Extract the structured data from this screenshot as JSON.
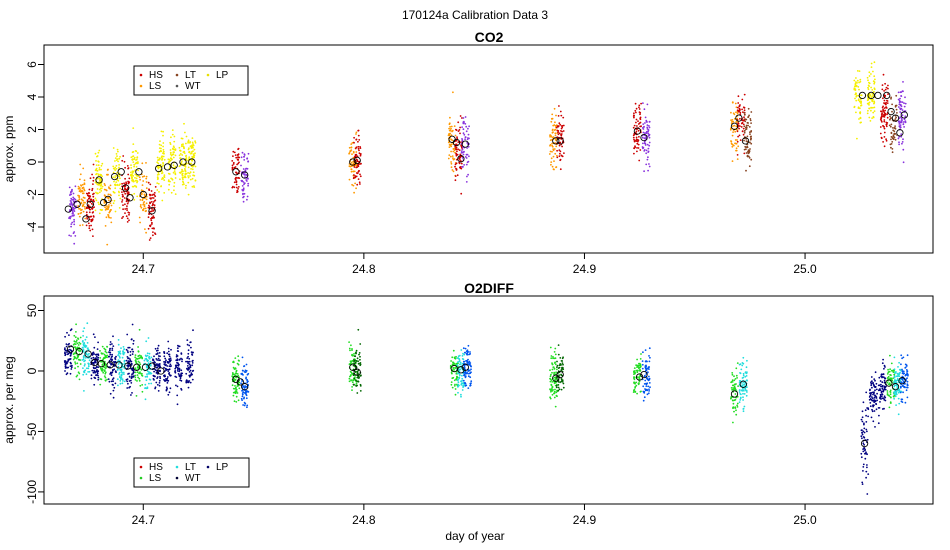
{
  "page_title": "170124a   Calibration Data 3",
  "xlabel": "day of year",
  "x_ticks": [
    "24.7",
    "24.8",
    "24.9",
    "25.0"
  ],
  "x_tick_values": [
    24.7,
    24.8,
    24.9,
    25.0
  ],
  "xlim": [
    24.655,
    25.058
  ],
  "chart_data": [
    {
      "type": "scatter",
      "title": "CO2",
      "ylabel": "approx. ppm",
      "ylim": [
        -5.6,
        7.2
      ],
      "y_ticks": [
        "-4",
        "-2",
        "0",
        "2",
        "4",
        "6"
      ],
      "y_tick_values": [
        -4,
        -2,
        0,
        2,
        4,
        6
      ],
      "legend": {
        "placement": "top-left",
        "entries": [
          {
            "name": "HS",
            "color": "#cc0000"
          },
          {
            "name": "LT",
            "color": "#884422"
          },
          {
            "name": "LP",
            "color": "#e8e000"
          },
          {
            "name": "LS",
            "color": "#ff9900"
          },
          {
            "name": "WT",
            "color": "#555555"
          }
        ]
      },
      "series": [
        {
          "name": "HS",
          "color": "#cc0000"
        },
        {
          "name": "LS",
          "color": "#ff9900"
        },
        {
          "name": "LT",
          "color": "#884422"
        },
        {
          "name": "WT",
          "color": "#8833dd"
        },
        {
          "name": "LP",
          "color": "#f5f000"
        }
      ],
      "clusters": [
        {
          "x": 24.668,
          "mean": -2.8,
          "color": "#8833dd"
        },
        {
          "x": 24.672,
          "mean": -2.4,
          "color": "#ff9900"
        },
        {
          "x": 24.676,
          "mean": -2.6,
          "color": "#cc0000"
        },
        {
          "x": 24.68,
          "mean": -1.2,
          "color": "#f5f000"
        },
        {
          "x": 24.684,
          "mean": -2.2,
          "color": "#ff9900"
        },
        {
          "x": 24.688,
          "mean": -1.0,
          "color": "#f5f000"
        },
        {
          "x": 24.692,
          "mean": -1.9,
          "color": "#cc0000"
        },
        {
          "x": 24.696,
          "mean": -0.7,
          "color": "#f5f000"
        },
        {
          "x": 24.7,
          "mean": -2.1,
          "color": "#ff9900"
        },
        {
          "x": 24.704,
          "mean": -2.9,
          "color": "#cc0000"
        },
        {
          "x": 24.708,
          "mean": -0.4,
          "color": "#f5f000"
        },
        {
          "x": 24.713,
          "mean": -0.2,
          "color": "#f5f000"
        },
        {
          "x": 24.718,
          "mean": 0.0,
          "color": "#f5f000"
        },
        {
          "x": 24.722,
          "mean": 0.1,
          "color": "#f5f000"
        },
        {
          "x": 24.742,
          "mean": -0.7,
          "color": "#cc0000"
        },
        {
          "x": 24.746,
          "mean": -0.9,
          "color": "#8833dd"
        },
        {
          "x": 24.795,
          "mean": 0.0,
          "color": "#ff9900"
        },
        {
          "x": 24.797,
          "mean": 0.0,
          "color": "#cc0000"
        },
        {
          "x": 24.84,
          "mean": 1.3,
          "color": "#ff9900"
        },
        {
          "x": 24.843,
          "mean": 0.6,
          "color": "#cc0000"
        },
        {
          "x": 24.846,
          "mean": 1.0,
          "color": "#8833dd"
        },
        {
          "x": 24.886,
          "mean": 1.4,
          "color": "#ff9900"
        },
        {
          "x": 24.889,
          "mean": 1.4,
          "color": "#cc0000"
        },
        {
          "x": 24.924,
          "mean": 1.9,
          "color": "#cc0000"
        },
        {
          "x": 24.928,
          "mean": 1.5,
          "color": "#8833dd"
        },
        {
          "x": 24.968,
          "mean": 2.3,
          "color": "#ff9900"
        },
        {
          "x": 24.971,
          "mean": 2.5,
          "color": "#cc0000"
        },
        {
          "x": 24.974,
          "mean": 1.4,
          "color": "#884422"
        },
        {
          "x": 25.024,
          "mean": 4.0,
          "color": "#f5f000"
        },
        {
          "x": 25.03,
          "mean": 4.0,
          "color": "#f5f000"
        },
        {
          "x": 25.036,
          "mean": 3.0,
          "color": "#cc0000"
        },
        {
          "x": 25.04,
          "mean": 2.2,
          "color": "#884422"
        },
        {
          "x": 25.044,
          "mean": 2.8,
          "color": "#8833dd"
        }
      ],
      "markers": [
        [
          24.666,
          -2.9
        ],
        [
          24.67,
          -2.6
        ],
        [
          24.674,
          -3.5
        ],
        [
          24.676,
          -2.6
        ],
        [
          24.68,
          -1.1
        ],
        [
          24.682,
          -2.5
        ],
        [
          24.684,
          -2.3
        ],
        [
          24.687,
          -0.9
        ],
        [
          24.69,
          -0.6
        ],
        [
          24.692,
          -1.6
        ],
        [
          24.694,
          -2.2
        ],
        [
          24.698,
          -0.6
        ],
        [
          24.7,
          -2.0
        ],
        [
          24.704,
          -3.0
        ],
        [
          24.707,
          -0.4
        ],
        [
          24.711,
          -0.3
        ],
        [
          24.714,
          -0.2
        ],
        [
          24.718,
          0.0
        ],
        [
          24.722,
          0.0
        ],
        [
          24.742,
          -0.6
        ],
        [
          24.746,
          -0.8
        ],
        [
          24.795,
          0.0
        ],
        [
          24.797,
          0.1
        ],
        [
          24.84,
          1.4
        ],
        [
          24.842,
          1.2
        ],
        [
          24.844,
          0.2
        ],
        [
          24.846,
          1.1
        ],
        [
          24.887,
          1.3
        ],
        [
          24.889,
          1.3
        ],
        [
          24.924,
          1.9
        ],
        [
          24.927,
          1.5
        ],
        [
          24.968,
          2.2
        ],
        [
          24.97,
          2.7
        ],
        [
          24.973,
          1.3
        ],
        [
          25.026,
          4.1
        ],
        [
          25.03,
          4.1
        ],
        [
          25.033,
          4.1
        ],
        [
          25.037,
          4.1
        ],
        [
          25.039,
          3.1
        ],
        [
          25.041,
          2.7
        ],
        [
          25.043,
          1.8
        ],
        [
          25.045,
          2.9
        ]
      ]
    },
    {
      "type": "scatter",
      "title": "O2DIFF",
      "ylabel": "approx. per meg",
      "ylim": [
        -110,
        62
      ],
      "y_ticks": [
        "-100",
        "-50",
        "0",
        "50"
      ],
      "y_tick_values": [
        -100,
        -50,
        0,
        50
      ],
      "legend": {
        "placement": "bottom-left",
        "entries": [
          {
            "name": "HS",
            "color": "#cc0000"
          },
          {
            "name": "LT",
            "color": "#22dddd"
          },
          {
            "name": "LP",
            "color": "#000066"
          },
          {
            "name": "LS",
            "color": "#22cc22"
          },
          {
            "name": "WT",
            "color": "#000033"
          }
        ]
      },
      "series": [
        {
          "name": "HS",
          "color": "#0055ee"
        },
        {
          "name": "LS",
          "color": "#22dd22"
        },
        {
          "name": "LT",
          "color": "#22dddd"
        },
        {
          "name": "WT",
          "color": "#006600"
        },
        {
          "name": "LP",
          "color": "#000080"
        }
      ],
      "clusters": [
        {
          "x": 24.666,
          "mean": 12,
          "color": "#000080"
        },
        {
          "x": 24.67,
          "mean": 16,
          "color": "#22dd22"
        },
        {
          "x": 24.674,
          "mean": 14,
          "color": "#22dddd"
        },
        {
          "x": 24.678,
          "mean": 8,
          "color": "#000080"
        },
        {
          "x": 24.682,
          "mean": 6,
          "color": "#22dd22"
        },
        {
          "x": 24.686,
          "mean": 5,
          "color": "#000080"
        },
        {
          "x": 24.69,
          "mean": 5,
          "color": "#22dddd"
        },
        {
          "x": 24.694,
          "mean": 4,
          "color": "#000080"
        },
        {
          "x": 24.698,
          "mean": 2,
          "color": "#22dd22"
        },
        {
          "x": 24.702,
          "mean": 2,
          "color": "#22dddd"
        },
        {
          "x": 24.706,
          "mean": 3,
          "color": "#000080"
        },
        {
          "x": 24.711,
          "mean": 2,
          "color": "#000080"
        },
        {
          "x": 24.716,
          "mean": 3,
          "color": "#000080"
        },
        {
          "x": 24.721,
          "mean": 4,
          "color": "#000080"
        },
        {
          "x": 24.742,
          "mean": -8,
          "color": "#22dd22"
        },
        {
          "x": 24.746,
          "mean": -12,
          "color": "#0055ee"
        },
        {
          "x": 24.795,
          "mean": 2,
          "color": "#22dd22"
        },
        {
          "x": 24.797,
          "mean": 0,
          "color": "#006600"
        },
        {
          "x": 24.841,
          "mean": 2,
          "color": "#22dd22"
        },
        {
          "x": 24.844,
          "mean": 0,
          "color": "#22dddd"
        },
        {
          "x": 24.847,
          "mean": 4,
          "color": "#0055ee"
        },
        {
          "x": 24.886,
          "mean": -5,
          "color": "#22dd22"
        },
        {
          "x": 24.889,
          "mean": -3,
          "color": "#006600"
        },
        {
          "x": 24.924,
          "mean": -4,
          "color": "#22dd22"
        },
        {
          "x": 24.928,
          "mean": -2,
          "color": "#0055ee"
        },
        {
          "x": 24.968,
          "mean": -18,
          "color": "#22dd22"
        },
        {
          "x": 24.972,
          "mean": -12,
          "color": "#22dddd"
        },
        {
          "x": 25.027,
          "mean": -60,
          "color": "#000080"
        },
        {
          "x": 25.031,
          "mean": -20,
          "color": "#000080"
        },
        {
          "x": 25.035,
          "mean": -16,
          "color": "#000080"
        },
        {
          "x": 25.039,
          "mean": -10,
          "color": "#22dd22"
        },
        {
          "x": 25.042,
          "mean": -11,
          "color": "#22dddd"
        },
        {
          "x": 25.045,
          "mean": -7,
          "color": "#0055ee"
        }
      ],
      "markers": [
        [
          24.667,
          18
        ],
        [
          24.671,
          16
        ],
        [
          24.675,
          14
        ],
        [
          24.678,
          7
        ],
        [
          24.681,
          6
        ],
        [
          24.685,
          5
        ],
        [
          24.689,
          5
        ],
        [
          24.693,
          4
        ],
        [
          24.697,
          3
        ],
        [
          24.701,
          3
        ],
        [
          24.704,
          4
        ],
        [
          24.708,
          0
        ],
        [
          24.742,
          -7
        ],
        [
          24.744,
          -9
        ],
        [
          24.746,
          -13
        ],
        [
          24.795,
          3
        ],
        [
          24.797,
          -1
        ],
        [
          24.841,
          2
        ],
        [
          24.844,
          1
        ],
        [
          24.846,
          3
        ],
        [
          24.887,
          -6
        ],
        [
          24.889,
          -3
        ],
        [
          24.925,
          -5
        ],
        [
          24.927,
          -3
        ],
        [
          24.968,
          -19
        ],
        [
          24.972,
          -11
        ],
        [
          25.027,
          -60
        ],
        [
          25.038,
          -10
        ],
        [
          25.041,
          -13
        ],
        [
          25.044,
          -8
        ]
      ]
    }
  ]
}
